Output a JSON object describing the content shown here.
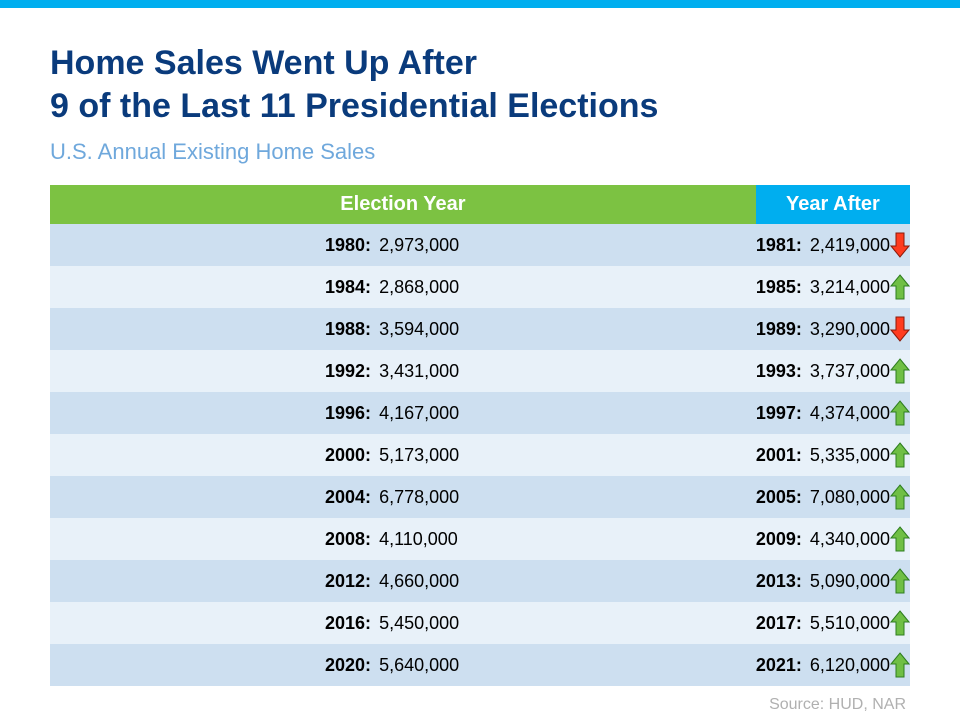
{
  "title_line1": "Home Sales Went Up After",
  "title_line2": "9 of the Last 11 Presidential Elections",
  "subtitle": "U.S. Annual Existing Home Sales",
  "columns": {
    "left": "Election Year",
    "right": "Year After"
  },
  "header_colors": {
    "left_bg": "#7cc242",
    "right_bg": "#00aeef"
  },
  "row_colors": {
    "odd": "#cddff0",
    "even": "#e8f1f9",
    "text": "#000000"
  },
  "arrow_colors": {
    "up_fill": "#6fbf44",
    "up_stroke": "#2e7d1f",
    "down_fill": "#ff3b1f",
    "down_stroke": "#8a1a0a"
  },
  "rows": [
    {
      "ey": "1980",
      "ev": "2,973,000",
      "ay": "1981",
      "av": "2,419,000",
      "dir": "down"
    },
    {
      "ey": "1984",
      "ev": "2,868,000",
      "ay": "1985",
      "av": "3,214,000",
      "dir": "up"
    },
    {
      "ey": "1988",
      "ev": "3,594,000",
      "ay": "1989",
      "av": "3,290,000",
      "dir": "down"
    },
    {
      "ey": "1992",
      "ev": "3,431,000",
      "ay": "1993",
      "av": "3,737,000",
      "dir": "up"
    },
    {
      "ey": "1996",
      "ev": "4,167,000",
      "ay": "1997",
      "av": "4,374,000",
      "dir": "up"
    },
    {
      "ey": "2000",
      "ev": "5,173,000",
      "ay": "2001",
      "av": "5,335,000",
      "dir": "up"
    },
    {
      "ey": "2004",
      "ev": "6,778,000",
      "ay": "2005",
      "av": "7,080,000",
      "dir": "up"
    },
    {
      "ey": "2008",
      "ev": "4,110,000",
      "ay": "2009",
      "av": "4,340,000",
      "dir": "up"
    },
    {
      "ey": "2012",
      "ev": "4,660,000",
      "ay": "2013",
      "av": "5,090,000",
      "dir": "up"
    },
    {
      "ey": "2016",
      "ev": "5,450,000",
      "ay": "2017",
      "av": "5,510,000",
      "dir": "up"
    },
    {
      "ey": "2020",
      "ev": "5,640,000",
      "ay": "2021",
      "av": "6,120,000",
      "dir": "up"
    }
  ],
  "source": "Source: HUD, NAR"
}
